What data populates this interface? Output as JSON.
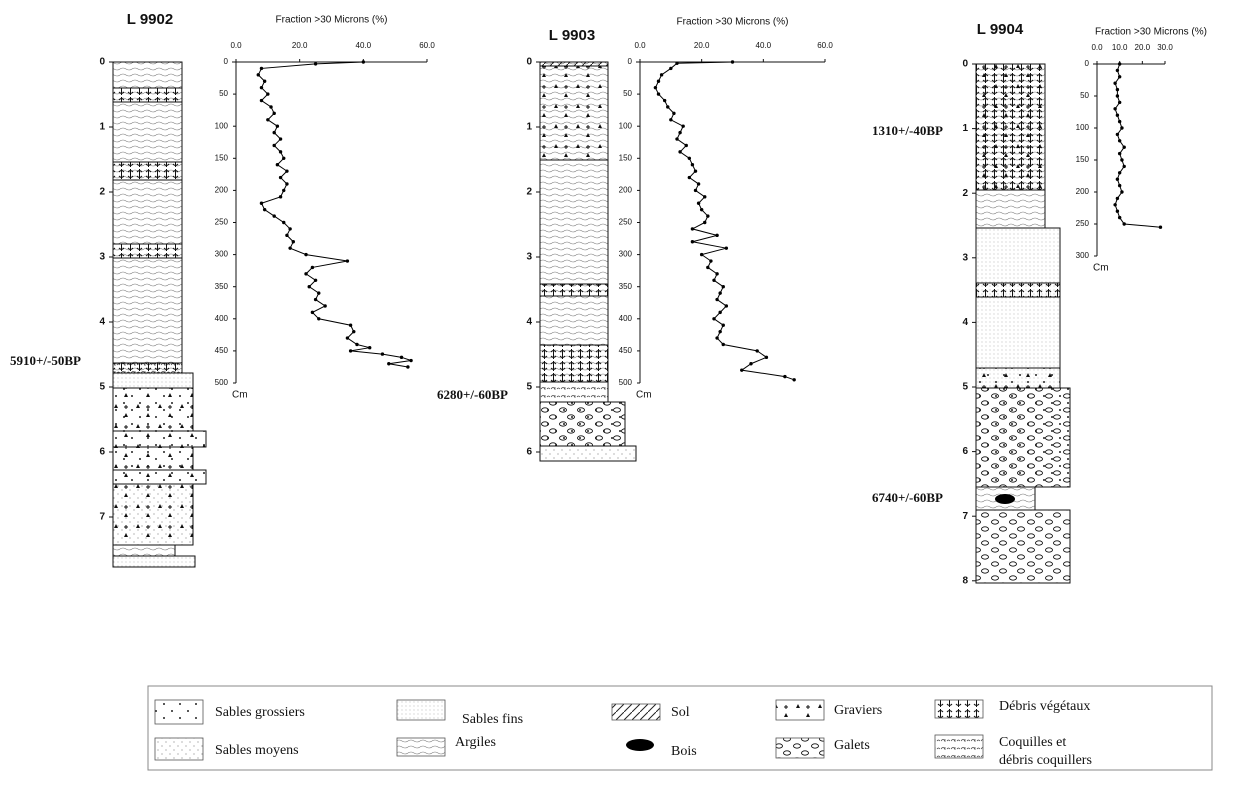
{
  "cores": [
    {
      "name": "L 9902",
      "depth_ticks": [
        0,
        1,
        2,
        3,
        4,
        5,
        6,
        7
      ],
      "dates": [
        "5910+/-50BP"
      ]
    },
    {
      "name": "L 9903",
      "depth_ticks": [
        0,
        1,
        2,
        3,
        4,
        5,
        6
      ],
      "dates": [
        "6280+/-60BP"
      ]
    },
    {
      "name": "L 9904",
      "depth_ticks": [
        0,
        1,
        2,
        3,
        4,
        5,
        6,
        7,
        8
      ],
      "dates": [
        "1310+/-40BP",
        "6740+/-60BP"
      ]
    }
  ],
  "chart_data": [
    {
      "type": "line",
      "title": "Fraction >30 Microns (%)",
      "ylabel": "Cm",
      "orientation": "vertical",
      "color": "#000000",
      "x": [
        0,
        3,
        10,
        20,
        30,
        40,
        50,
        60,
        70,
        80,
        90,
        100,
        110,
        120,
        130,
        140,
        150,
        160,
        170,
        180,
        190,
        200,
        210,
        220,
        230,
        240,
        250,
        260,
        270,
        280,
        290,
        300,
        310,
        320,
        330,
        340,
        350,
        360,
        370,
        380,
        390,
        400,
        410,
        420,
        430,
        440,
        445,
        450,
        455,
        460,
        465,
        470,
        475
      ],
      "values": [
        40,
        25,
        8,
        7,
        9,
        8,
        10,
        8,
        11,
        12,
        10,
        13,
        12,
        14,
        12,
        14,
        15,
        13,
        16,
        14,
        16,
        15,
        14,
        8,
        9,
        12,
        15,
        17,
        16,
        18,
        17,
        22,
        35,
        24,
        22,
        25,
        23,
        26,
        25,
        28,
        24,
        26,
        36,
        37,
        35,
        38,
        42,
        36,
        46,
        52,
        55,
        48,
        54
      ],
      "xlim": [
        0,
        500
      ],
      "xticks": [
        0,
        50,
        100,
        150,
        200,
        250,
        300,
        350,
        400,
        450,
        500
      ],
      "ylim": [
        0,
        60
      ],
      "yticks": [
        {
          "value": 0,
          "label": "0.0"
        },
        {
          "value": 20,
          "label": "20.0"
        },
        {
          "value": 40,
          "label": "40.0"
        },
        {
          "value": 60,
          "label": "60.0"
        }
      ]
    },
    {
      "type": "line",
      "title": "Fraction >30 Microns (%)",
      "ylabel": "Cm",
      "orientation": "vertical",
      "color": "#000000",
      "x": [
        0,
        2,
        10,
        20,
        30,
        40,
        50,
        60,
        70,
        80,
        90,
        100,
        110,
        120,
        130,
        140,
        150,
        160,
        170,
        180,
        190,
        200,
        210,
        220,
        230,
        240,
        250,
        260,
        270,
        280,
        290,
        300,
        310,
        320,
        330,
        340,
        350,
        360,
        370,
        380,
        390,
        400,
        410,
        420,
        430,
        440,
        450,
        460,
        470,
        480,
        490,
        495
      ],
      "values": [
        30,
        12,
        10,
        7,
        6,
        5,
        6,
        8,
        9,
        11,
        10,
        14,
        13,
        12,
        15,
        13,
        16,
        17,
        18,
        16,
        19,
        18,
        21,
        19,
        20,
        22,
        21,
        17,
        25,
        17,
        28,
        20,
        23,
        22,
        25,
        24,
        27,
        26,
        25,
        28,
        26,
        24,
        27,
        26,
        25,
        27,
        38,
        41,
        36,
        33,
        47,
        50
      ],
      "xlim": [
        0,
        500
      ],
      "xticks": [
        0,
        50,
        100,
        150,
        200,
        250,
        300,
        350,
        400,
        450,
        500
      ],
      "ylim": [
        0,
        60
      ],
      "yticks": [
        {
          "value": 0,
          "label": "0.0"
        },
        {
          "value": 20,
          "label": "20.0"
        },
        {
          "value": 40,
          "label": "40.0"
        },
        {
          "value": 60,
          "label": "60.0"
        }
      ]
    },
    {
      "type": "line",
      "title": "Fraction >30 Microns (%)",
      "ylabel": "Cm",
      "orientation": "vertical",
      "color": "#000000",
      "x": [
        0,
        10,
        20,
        30,
        40,
        50,
        60,
        70,
        80,
        90,
        100,
        110,
        120,
        130,
        140,
        150,
        160,
        170,
        180,
        190,
        200,
        210,
        220,
        230,
        240,
        250,
        255
      ],
      "values": [
        10,
        9,
        10,
        8,
        9,
        9,
        10,
        8,
        9,
        10,
        11,
        9,
        10,
        12,
        10,
        11,
        12,
        10,
        9,
        10,
        11,
        9,
        8,
        9,
        10,
        12,
        28
      ],
      "xlim": [
        0,
        300
      ],
      "xticks": [
        0,
        50,
        100,
        150,
        200,
        250,
        300
      ],
      "ylim": [
        0,
        30
      ],
      "yticks": [
        {
          "value": 0,
          "label": "0.0"
        },
        {
          "value": 10,
          "label": "10.0"
        },
        {
          "value": 20,
          "label": "20.0"
        },
        {
          "value": 30,
          "label": "30.0"
        }
      ]
    }
  ],
  "legend": [
    [
      "Sables grossiers"
    ],
    [
      "Sables moyens"
    ],
    [
      "Sables  fins"
    ],
    [
      "Argiles"
    ],
    [
      "Sol"
    ],
    [
      "Bois"
    ],
    [
      "Graviers"
    ],
    [
      "Galets"
    ],
    [
      "Débris végétaux"
    ],
    [
      "Coquilles et",
      "débris coquillers"
    ]
  ]
}
